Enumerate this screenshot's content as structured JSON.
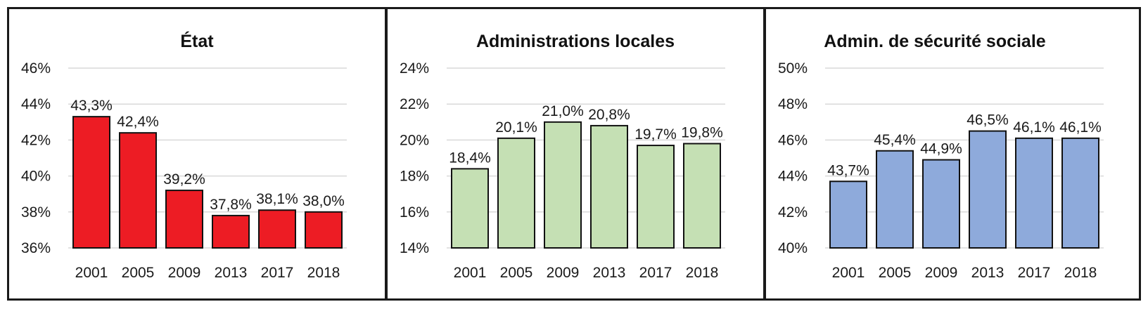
{
  "chart_data": [
    {
      "type": "bar",
      "title": "État",
      "categories": [
        "2001",
        "2005",
        "2009",
        "2013",
        "2017",
        "2018"
      ],
      "values": [
        43.3,
        42.4,
        39.2,
        37.8,
        38.1,
        38.0
      ],
      "value_labels": [
        "43,3%",
        "42,4%",
        "39,2%",
        "37,8%",
        "38,1%",
        "38,0%"
      ],
      "ylim": [
        36,
        46
      ],
      "yticks": [
        36,
        38,
        40,
        42,
        44,
        46
      ],
      "ytick_labels": [
        "36%",
        "38%",
        "40%",
        "42%",
        "44%",
        "46%"
      ],
      "bar_color": "#ed1c24",
      "grid": true
    },
    {
      "type": "bar",
      "title": "Administrations locales",
      "categories": [
        "2001",
        "2005",
        "2009",
        "2013",
        "2017",
        "2018"
      ],
      "values": [
        18.4,
        20.1,
        21.0,
        20.8,
        19.7,
        19.8
      ],
      "value_labels": [
        "18,4%",
        "20,1%",
        "21,0%",
        "20,8%",
        "19,7%",
        "19,8%"
      ],
      "ylim": [
        14,
        24
      ],
      "yticks": [
        14,
        16,
        18,
        20,
        22,
        24
      ],
      "ytick_labels": [
        "14%",
        "16%",
        "18%",
        "20%",
        "22%",
        "24%"
      ],
      "bar_color": "#c5e0b4",
      "grid": true
    },
    {
      "type": "bar",
      "title": "Admin. de sécurité sociale",
      "categories": [
        "2001",
        "2005",
        "2009",
        "2013",
        "2017",
        "2018"
      ],
      "values": [
        43.7,
        45.4,
        44.9,
        46.5,
        46.1,
        46.1
      ],
      "value_labels": [
        "43,7%",
        "45,4%",
        "44,9%",
        "46,5%",
        "46,1%",
        "46,1%"
      ],
      "ylim": [
        40,
        50
      ],
      "yticks": [
        40,
        42,
        44,
        46,
        48,
        50
      ],
      "ytick_labels": [
        "40%",
        "42%",
        "44%",
        "46%",
        "48%",
        "50%"
      ],
      "bar_color": "#8eaadb",
      "grid": true
    }
  ]
}
